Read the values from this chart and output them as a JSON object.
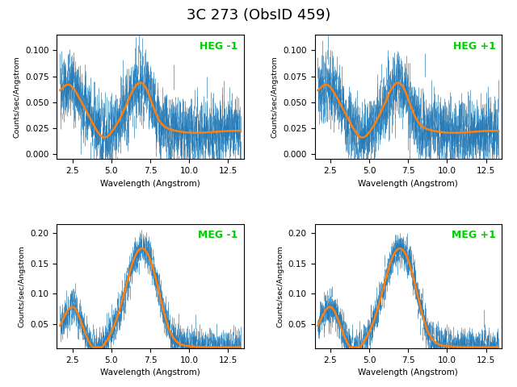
{
  "title": "3C 273 (ObsID 459)",
  "title_fontsize": 13,
  "subplots": [
    {
      "label": "HEG -1",
      "label_color": "#00cc00",
      "xmin": 1.5,
      "xmax": 13.5,
      "ymin": -0.005,
      "ymax": 0.115,
      "yticks": [
        0.0,
        0.025,
        0.05,
        0.075,
        0.1
      ],
      "xticks": [
        2.5,
        5.0,
        7.5,
        10.0,
        12.5
      ],
      "ylabel": "Counts/sec/Angstrom",
      "xlabel": "Wavelength (Angstrom)"
    },
    {
      "label": "HEG +1",
      "label_color": "#00cc00",
      "xmin": 1.5,
      "xmax": 13.5,
      "ymin": -0.005,
      "ymax": 0.115,
      "yticks": [
        0.0,
        0.025,
        0.05,
        0.075,
        0.1
      ],
      "xticks": [
        2.5,
        5.0,
        7.5,
        10.0,
        12.5
      ],
      "ylabel": "Counts/sec/Angstrom",
      "xlabel": "Wavelength (Angstrom)"
    },
    {
      "label": "MEG -1",
      "label_color": "#00cc00",
      "xmin": 1.5,
      "xmax": 13.5,
      "ymin": 0.01,
      "ymax": 0.215,
      "yticks": [
        0.05,
        0.1,
        0.15,
        0.2
      ],
      "xticks": [
        2.5,
        5.0,
        7.5,
        10.0,
        12.5
      ],
      "ylabel": "Counts/sec/Angstrom",
      "xlabel": "Wavelength (Angstrom)"
    },
    {
      "label": "MEG +1",
      "label_color": "#00cc00",
      "xmin": 1.5,
      "xmax": 13.5,
      "ymin": 0.01,
      "ymax": 0.215,
      "yticks": [
        0.05,
        0.1,
        0.15,
        0.2
      ],
      "xticks": [
        2.5,
        5.0,
        7.5,
        10.0,
        12.5
      ],
      "ylabel": "Counts/sec/Angstrom",
      "xlabel": "Wavelength (Angstrom)"
    }
  ],
  "data_color": "#1f77b4",
  "model_color": "#ff7f0e",
  "background_color": "#ffffff"
}
